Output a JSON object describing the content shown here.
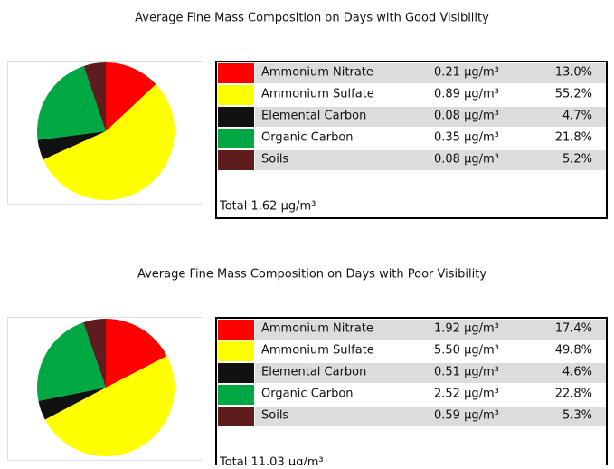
{
  "chart_data": [
    {
      "type": "pie",
      "title": "Average Fine Mass Composition on Days with Good Visibility",
      "categories": [
        "Ammonium Nitrate",
        "Ammonium Sulfate",
        "Elemental Carbon",
        "Organic Carbon",
        "Soils"
      ],
      "values": [
        13.0,
        55.2,
        4.7,
        21.8,
        5.2
      ],
      "value_labels": [
        "13.0%",
        "55.2%",
        "4.7%",
        "21.8%",
        "5.2%"
      ],
      "concentrations": [
        "0.21 μg/m³",
        "0.89 μg/m³",
        "0.08 μg/m³",
        "0.35 μg/m³",
        "0.08 μg/m³"
      ],
      "total": "Total 1.62 μg/m³",
      "colors": [
        "#ff0000",
        "#ffff00",
        "#111111",
        "#00a844",
        "#5e1c1c"
      ]
    },
    {
      "type": "pie",
      "title": "Average Fine Mass Composition on Days with Poor Visibility",
      "categories": [
        "Ammonium Nitrate",
        "Ammonium Sulfate",
        "Elemental Carbon",
        "Organic Carbon",
        "Soils"
      ],
      "values": [
        17.4,
        49.8,
        4.6,
        22.8,
        5.3
      ],
      "value_labels": [
        "17.4%",
        "49.8%",
        "4.6%",
        "22.8%",
        "5.3%"
      ],
      "concentrations": [
        "1.92 μg/m³",
        "5.50 μg/m³",
        "0.51 μg/m³",
        "2.52 μg/m³",
        "0.59 μg/m³"
      ],
      "total": "Total 11.03 μg/m³",
      "colors": [
        "#ff0000",
        "#ffff00",
        "#111111",
        "#00a844",
        "#5e1c1c"
      ]
    }
  ]
}
